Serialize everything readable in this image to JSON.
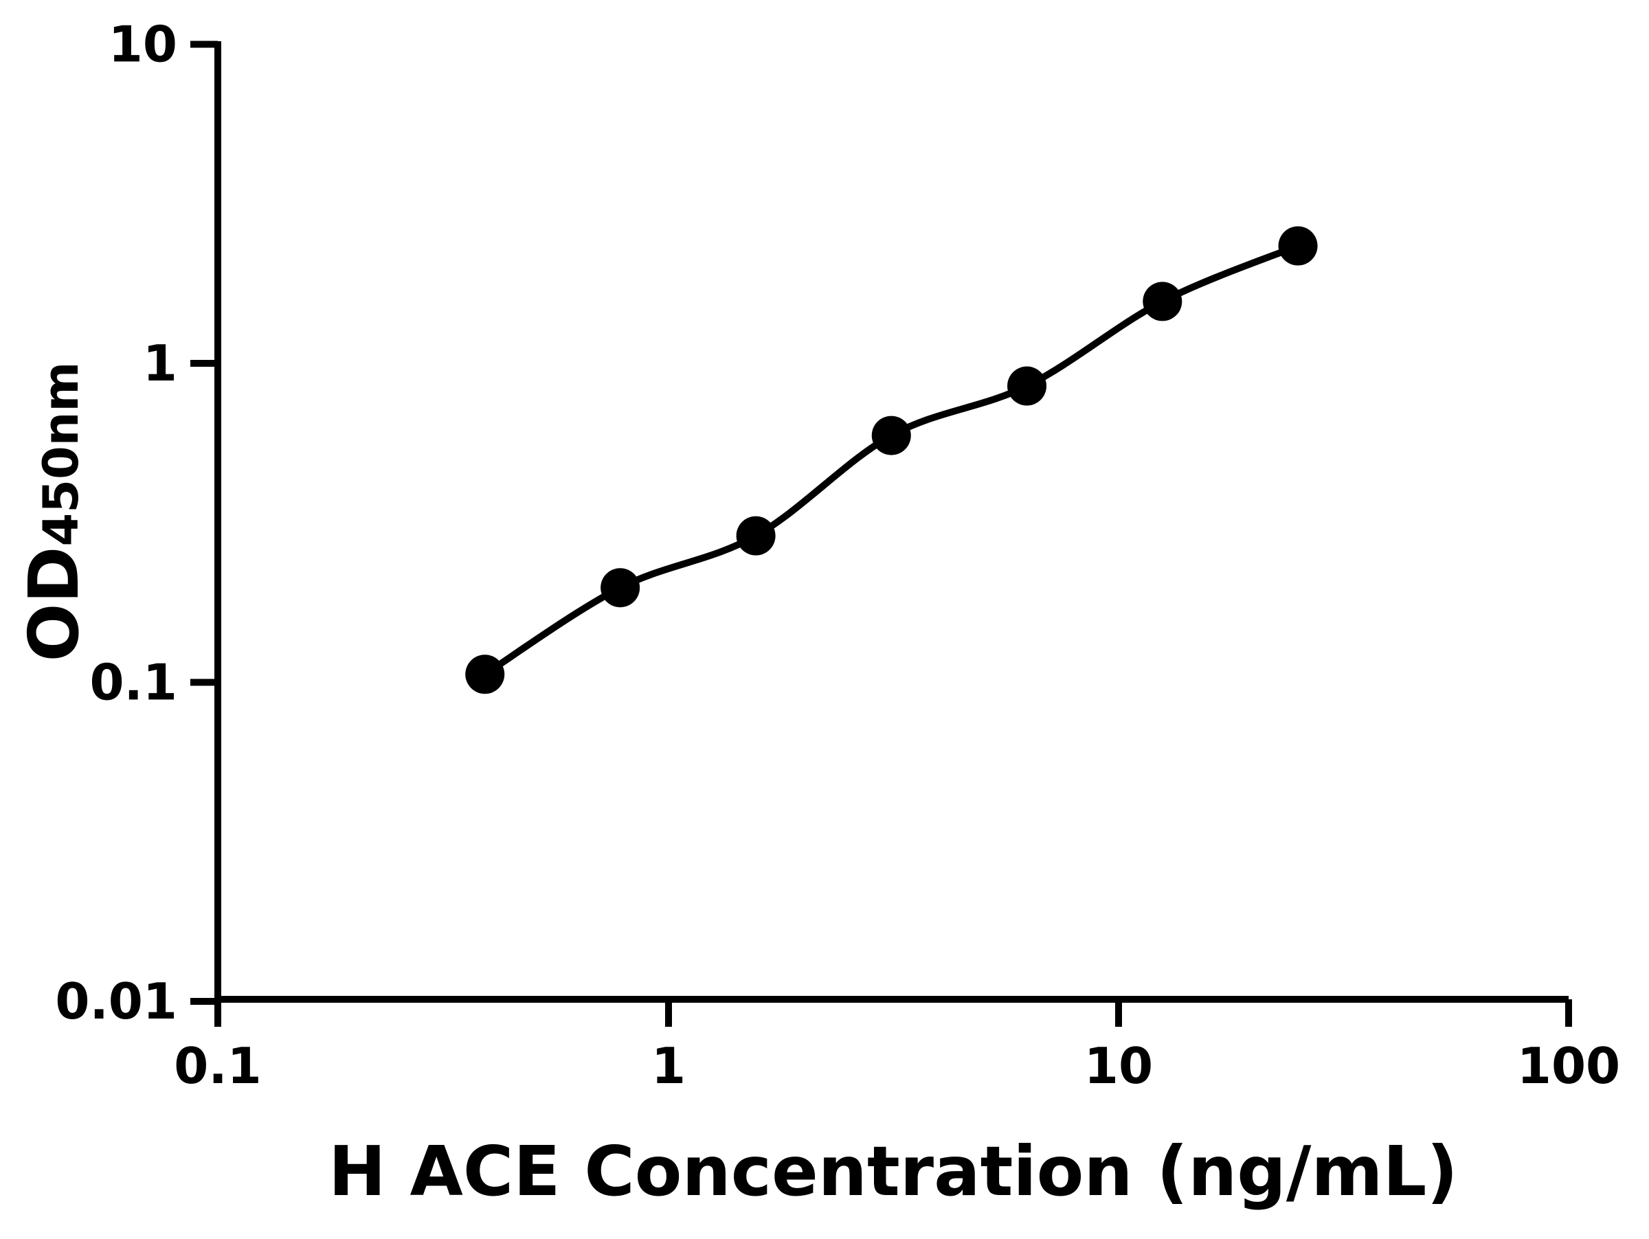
{
  "chart_data": {
    "type": "line",
    "title": "",
    "xlabel": "H ACE Concentration (ng/mL)",
    "ylabel": "OD",
    "ylabel_subscript": "450nm",
    "xscale": "log",
    "yscale": "log",
    "xlim": [
      0.1,
      100
    ],
    "ylim": [
      0.01,
      10
    ],
    "x_tick_labels": [
      "0.1",
      "1",
      "10",
      "100"
    ],
    "y_tick_labels": [
      "10",
      "1",
      "0.1",
      "0.01"
    ],
    "grid": false,
    "legend": false,
    "line_color": "#000000",
    "marker": "circle",
    "marker_color": "#000000",
    "background_color": "#ffffff",
    "series": [
      {
        "x": [
          0.391,
          0.781,
          1.563,
          3.125,
          6.25,
          12.5,
          25
        ],
        "y": [
          0.106,
          0.198,
          0.288,
          0.594,
          0.849,
          1.563,
          2.334
        ]
      }
    ]
  }
}
